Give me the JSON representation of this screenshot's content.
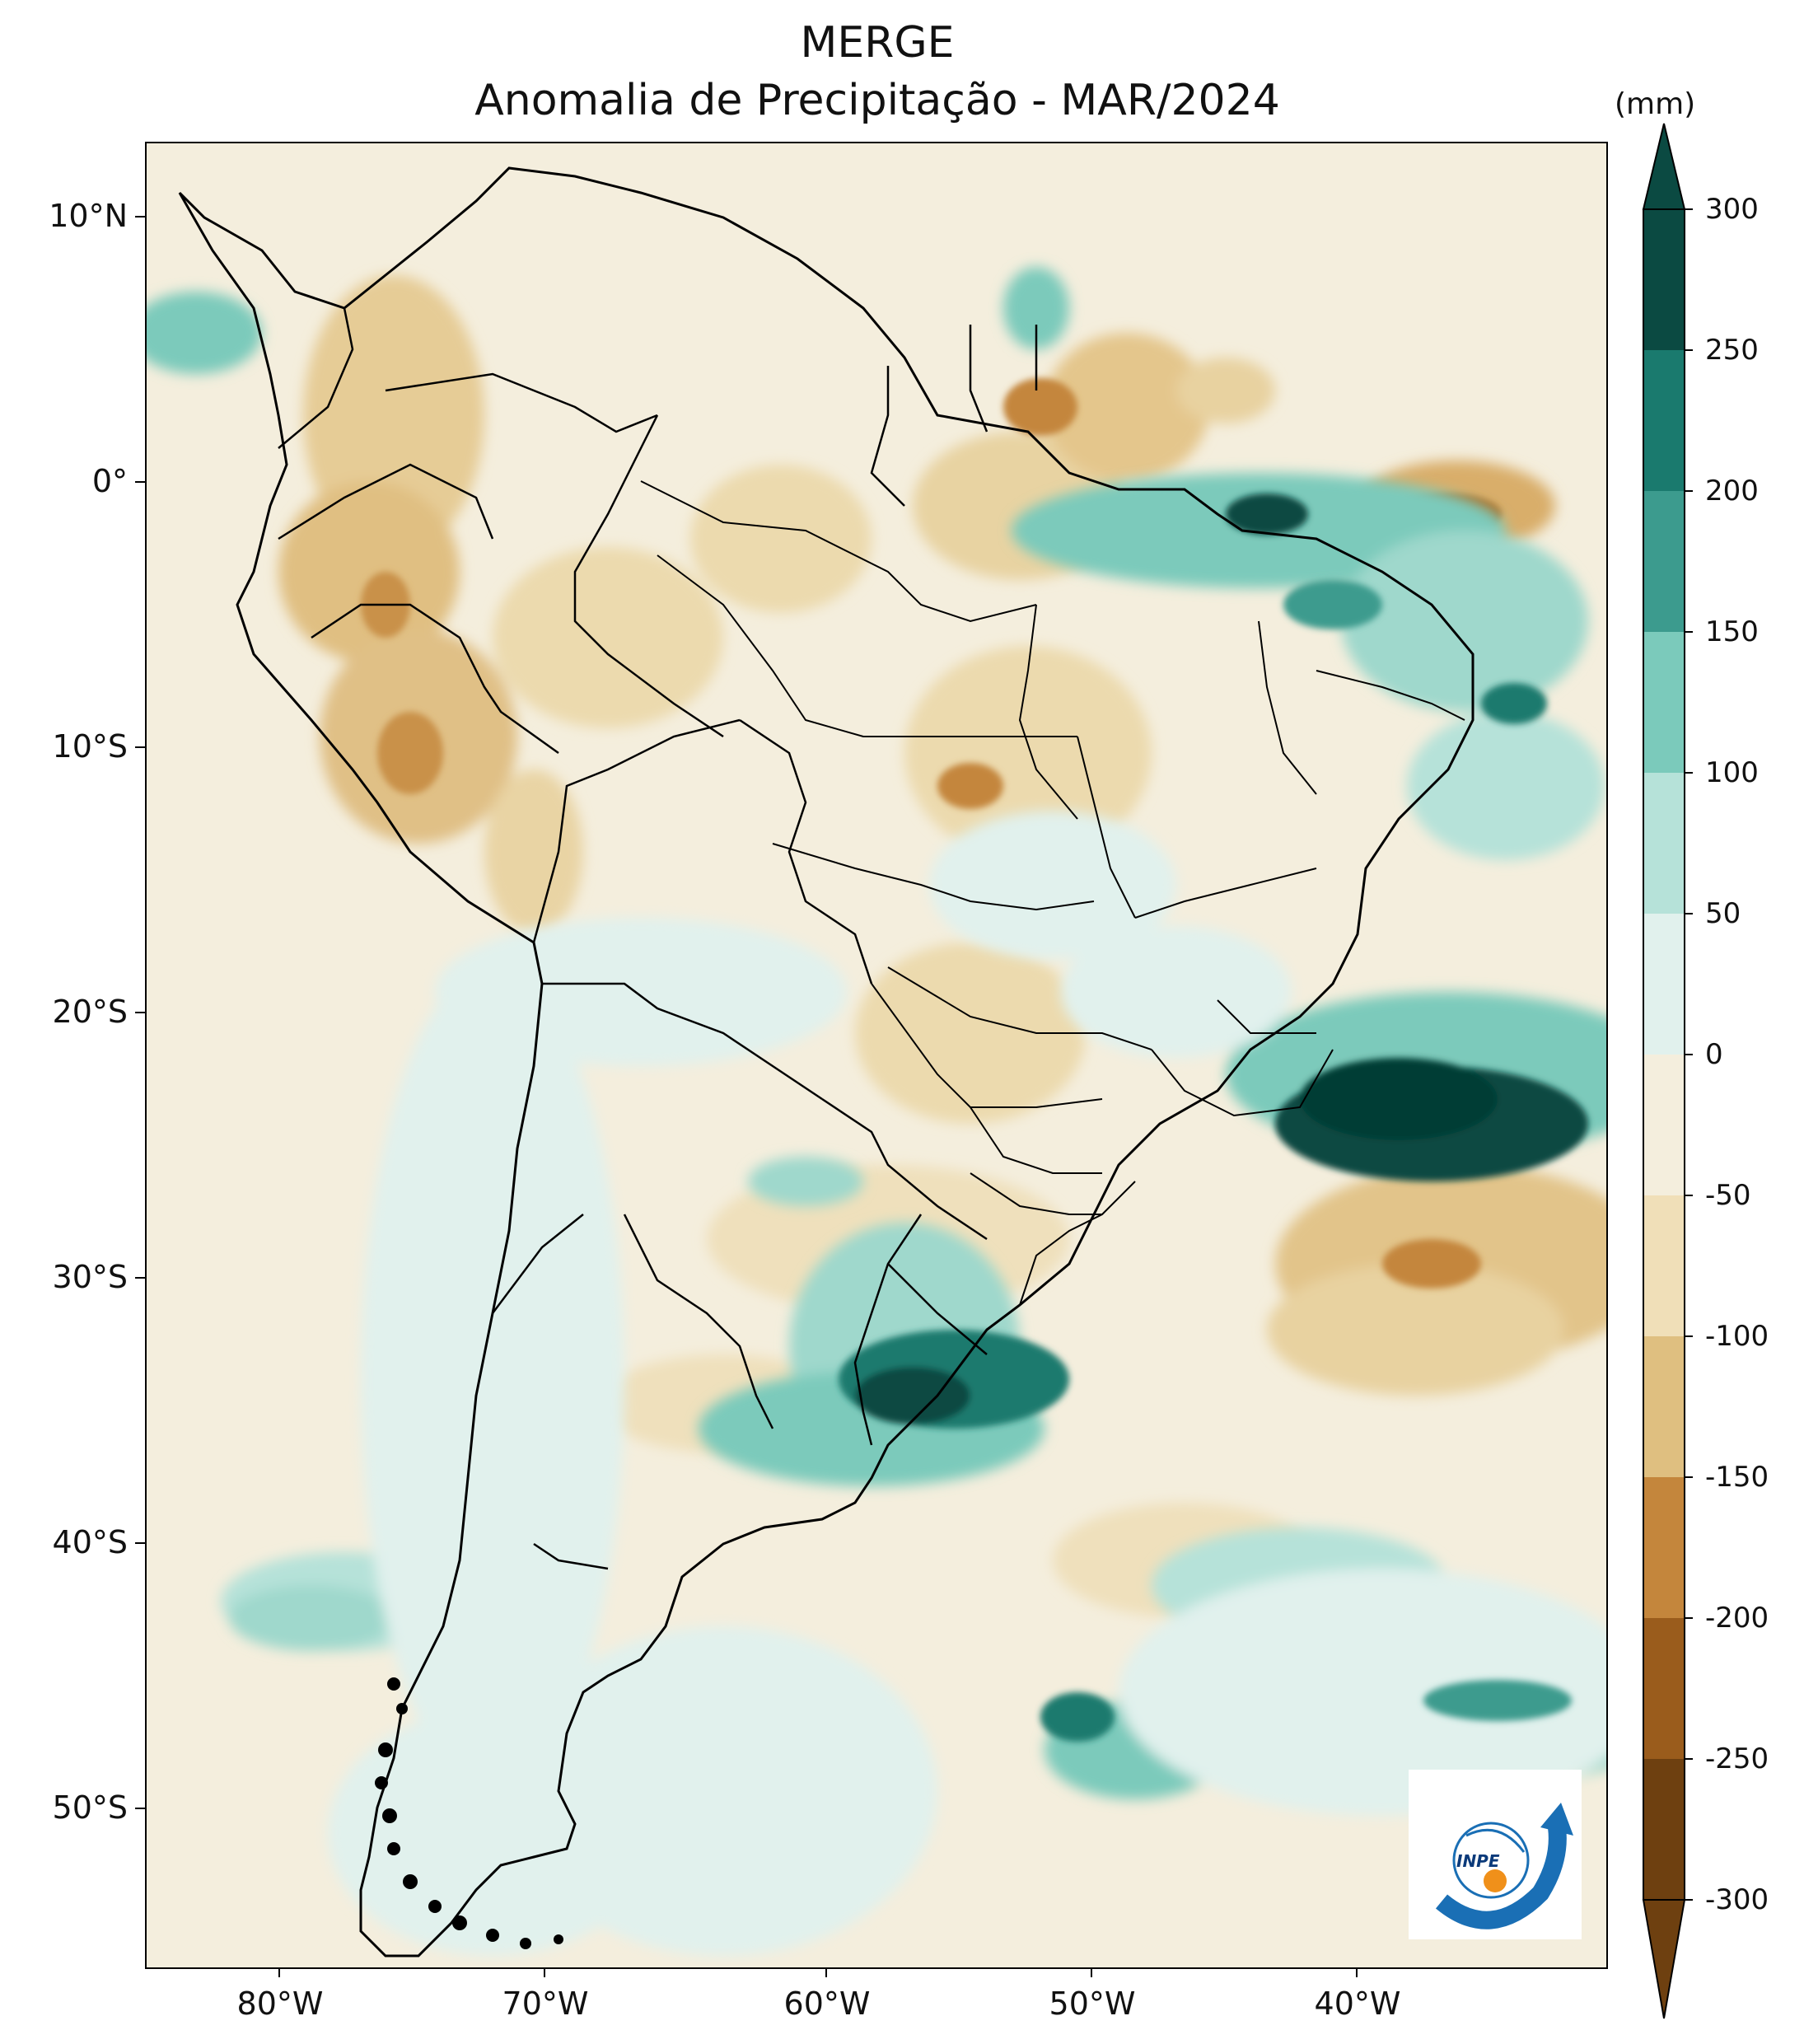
{
  "title": {
    "line1": "MERGE",
    "line2": "Anomalia de Precipitação - MAR/2024"
  },
  "map": {
    "type": "map",
    "variable": "Precipitation anomaly",
    "lon_range": [
      -85,
      -30
    ],
    "lat_range": [
      -56,
      13
    ],
    "lat_ticks": [
      "10°N",
      "0°",
      "10°S",
      "20°S",
      "30°S",
      "40°S",
      "50°S"
    ],
    "lon_ticks": [
      "80°W",
      "70°W",
      "60°W",
      "50°W",
      "40°W"
    ],
    "lat_tick_values": [
      10,
      0,
      -10,
      -20,
      -30,
      -40,
      -50
    ],
    "lon_tick_values": [
      -80,
      -70,
      -60,
      -50,
      -40
    ]
  },
  "colorbar": {
    "unit": "(mm)",
    "levels": [
      -300,
      -250,
      -200,
      -150,
      -100,
      -50,
      0,
      50,
      100,
      150,
      200,
      250,
      300
    ],
    "labels": [
      "300",
      "250",
      "200",
      "150",
      "100",
      "50",
      "0",
      "-50",
      "-100",
      "-150",
      "-200",
      "-250",
      "-300"
    ],
    "colors_top_to_bottom": [
      "#0b4a42",
      "#1a7a6e",
      "#3c9b8e",
      "#7bcabb",
      "#b6e2d9",
      "#e1f1ed",
      "#f4eedd",
      "#f0dfb8",
      "#dfbf80",
      "#c4863c",
      "#9a5c1c",
      "#6e4010"
    ]
  },
  "logo": {
    "text": "INPE",
    "icon": "inpe-logo-icon"
  }
}
